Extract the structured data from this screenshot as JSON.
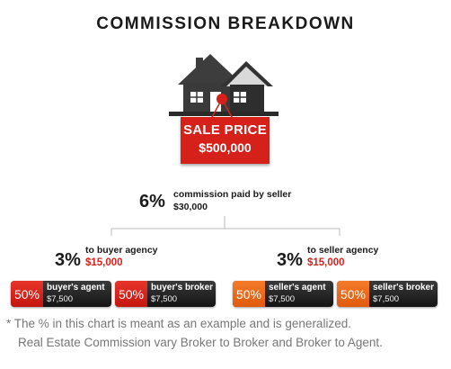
{
  "title": "COMMISSION BREAKDOWN",
  "sale": {
    "label": "SALE PRICE",
    "value": "$500,000"
  },
  "commission": {
    "percent": "6%",
    "label": "commission paid by seller",
    "amount": "$30,000"
  },
  "buyer_side": {
    "percent": "3%",
    "label": "to buyer agency",
    "amount": "$15,000",
    "splits": [
      {
        "percent": "50%",
        "role": "buyer's agent",
        "amount": "$7,500"
      },
      {
        "percent": "50%",
        "role": "buyer's broker",
        "amount": "$7,500"
      }
    ]
  },
  "seller_side": {
    "percent": "3%",
    "label": "to seller agency",
    "amount": "$15,000",
    "splits": [
      {
        "percent": "50%",
        "role": "seller's agent",
        "amount": "$7,500"
      },
      {
        "percent": "50%",
        "role": "seller's broker",
        "amount": "$7,500"
      }
    ]
  },
  "footnote": {
    "line1": "* The % in this chart is meant as an example and is generalized.",
    "line2": "Real Estate Commission vary Broker to Broker and Broker to Agent."
  },
  "colors": {
    "red": "#d6211a",
    "orange": "#f26d21",
    "dark": "#262626",
    "line": "#bbbbbb"
  }
}
